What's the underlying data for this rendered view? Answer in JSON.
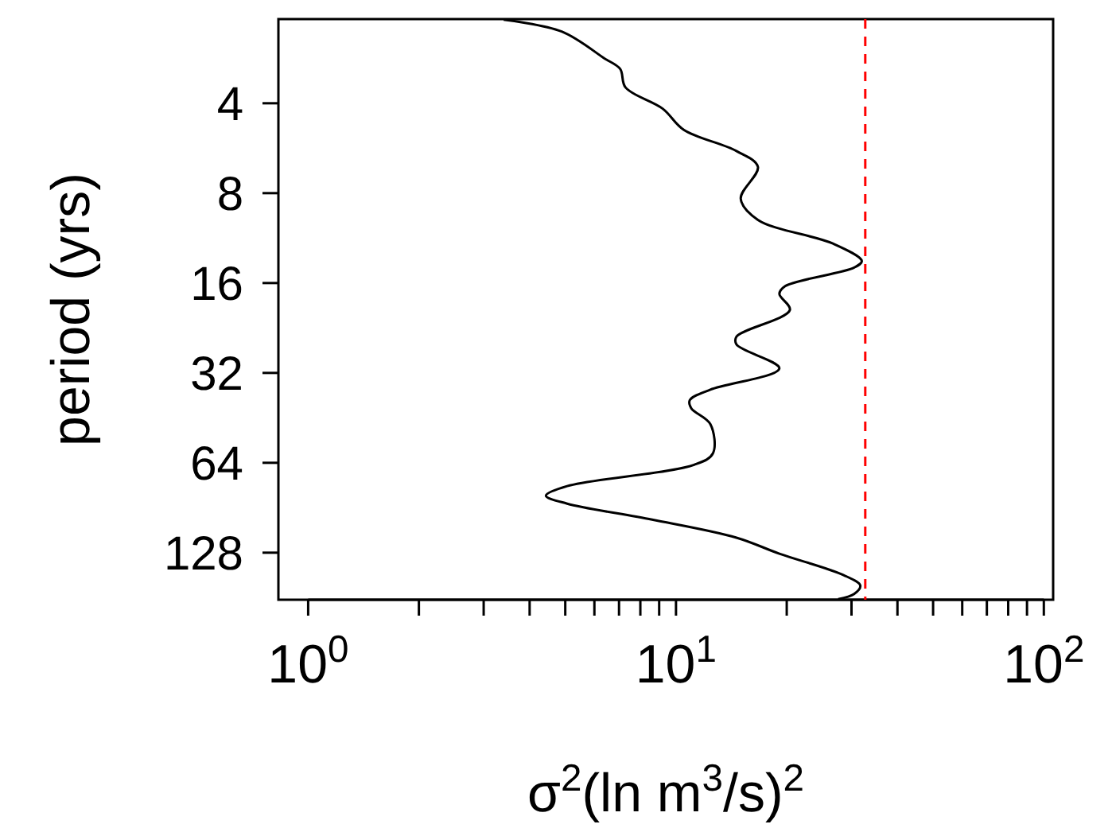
{
  "chart_data": {
    "type": "line",
    "xlabel": "σ$^{2}$(ln m$^{3}$/s)$^{2}$",
    "ylabel": "period (yrs)",
    "log": "xy",
    "marker": "none",
    "line_style": "solid",
    "xlim": [
      0.83,
      106
    ],
    "ylim": [
      184,
      2.09
    ],
    "xticks": [
      {
        "value": 1,
        "label": "10$^{0}$"
      },
      {
        "value": 2,
        "label": null
      },
      {
        "value": 3,
        "label": null
      },
      {
        "value": 4,
        "label": null
      },
      {
        "value": 5,
        "label": null
      },
      {
        "value": 6,
        "label": null
      },
      {
        "value": 7,
        "label": null
      },
      {
        "value": 8,
        "label": null
      },
      {
        "value": 9,
        "label": null
      },
      {
        "value": 10,
        "label": "10$^{1}$"
      },
      {
        "value": 20,
        "label": null
      },
      {
        "value": 30,
        "label": null
      },
      {
        "value": 40,
        "label": null
      },
      {
        "value": 50,
        "label": null
      },
      {
        "value": 60,
        "label": null
      },
      {
        "value": 70,
        "label": null
      },
      {
        "value": 80,
        "label": null
      },
      {
        "value": 90,
        "label": null
      },
      {
        "value": 100,
        "label": "10$^{2}$"
      }
    ],
    "yticks": [
      4,
      8,
      16,
      32,
      64,
      128
    ],
    "ref_lines": [
      {
        "axis": "x",
        "value": 32.7,
        "color": "#ff0000",
        "line_style": "dashed"
      }
    ],
    "series": [
      {
        "color": "#000000",
        "x": [
          3.4,
          4.89,
          6.39,
          7.05,
          7.29,
          9.2,
          10.5,
          14.6,
          16.7,
          15.0,
          16.7,
          26.7,
          32.0,
          30.5,
          19.8,
          19.1,
          20.4,
          14.6,
          14.6,
          19.1,
          12.4,
          10.9,
          11.0,
          12.4,
          12.6,
          11.2,
          5.06,
          4.43,
          5.06,
          8.61,
          14.6,
          19.1,
          28.5,
          31.7,
          30.5,
          27.6
        ],
        "values": [
          2.1,
          2.3,
          2.83,
          3.07,
          3.54,
          4.17,
          4.91,
          5.78,
          6.53,
          8.35,
          9.83,
          11.8,
          13.5,
          14.2,
          16.4,
          17.4,
          19.7,
          24.2,
          25.7,
          30.9,
          36.4,
          39.5,
          42.0,
          47.5,
          59.5,
          65.0,
          76.6,
          82.5,
          87.7,
          99.2,
          114,
          129,
          152,
          165,
          176,
          183
        ]
      }
    ]
  }
}
